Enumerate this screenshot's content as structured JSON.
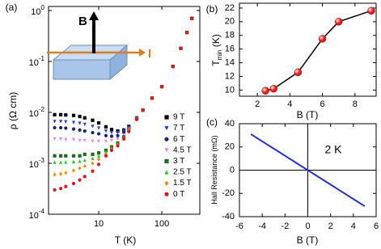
{
  "chart_data": [
    {
      "type": "scatter",
      "panel_label": "(a)",
      "xlabel": "T (K)",
      "ylabel": "ρ (Ω cm)",
      "xscale": "log",
      "yscale": "log",
      "xlim": [
        1.6,
        400
      ],
      "ylim": [
        0.0001,
        1.2
      ],
      "xticks": [
        10,
        100
      ],
      "yticks": [
        {
          "value": 0.0001,
          "label": "10",
          "exponent": "-4"
        },
        {
          "value": 0.001,
          "label": "10",
          "exponent": "-3"
        },
        {
          "value": 0.01,
          "label": "10",
          "exponent": "-2"
        },
        {
          "value": 0.1,
          "label": "10",
          "exponent": "-1"
        },
        {
          "value": 1,
          "label": "10",
          "exponent": "0"
        }
      ],
      "legend": "right",
      "inset": {
        "field_label": "B",
        "current_label": "I"
      },
      "x": [
        2,
        2.5,
        3,
        4,
        5,
        6,
        8,
        10,
        13,
        16,
        20,
        25,
        30,
        40,
        50,
        70,
        100,
        150,
        200,
        250,
        300
      ],
      "series": [
        {
          "name": "9 T",
          "color": "#000000",
          "marker": "square",
          "values": [
            0.009,
            0.009,
            0.0089,
            0.0087,
            0.0083,
            0.0078,
            0.007,
            0.0062,
            0.0052,
            0.0046,
            0.0043,
            0.0045,
            0.0053,
            0.0078,
            0.011,
            0.019,
            0.032,
            0.08,
            0.18,
            0.37,
            0.7
          ]
        },
        {
          "name": "7 T",
          "color": "#2040e0",
          "marker": "triangle-down",
          "values": [
            0.0066,
            0.0066,
            0.0065,
            0.0063,
            0.0061,
            0.0058,
            0.0053,
            0.0049,
            0.0043,
            0.004,
            0.004,
            0.0043,
            0.0051,
            0.0077,
            0.011,
            0.019,
            0.032,
            0.08,
            0.18,
            0.37,
            0.7
          ]
        },
        {
          "name": "6 T",
          "color": "#1a237e",
          "marker": "circle",
          "values": [
            0.005,
            0.005,
            0.0049,
            0.0047,
            0.0045,
            0.0043,
            0.004,
            0.0038,
            0.0035,
            0.0034,
            0.0035,
            0.004,
            0.0049,
            0.0076,
            0.011,
            0.019,
            0.032,
            0.08,
            0.18,
            0.37,
            0.7
          ]
        },
        {
          "name": "4.5 T",
          "color": "#ee82ee",
          "marker": "triangle-down",
          "values": [
            0.003,
            0.003,
            0.0029,
            0.0029,
            0.0028,
            0.0028,
            0.0027,
            0.0027,
            0.0027,
            0.0028,
            0.003,
            0.0036,
            0.0047,
            0.0075,
            0.011,
            0.019,
            0.032,
            0.08,
            0.18,
            0.37,
            0.7
          ]
        },
        {
          "name": "3 T",
          "color": "#1b6e1b",
          "marker": "square",
          "values": [
            0.0014,
            0.0014,
            0.0014,
            0.0014,
            0.0014,
            0.0015,
            0.0015,
            0.0016,
            0.0018,
            0.0021,
            0.0025,
            0.0033,
            0.0045,
            0.0074,
            0.011,
            0.019,
            0.032,
            0.08,
            0.18,
            0.37,
            0.7
          ]
        },
        {
          "name": "2.5 T",
          "color": "#22cc22",
          "marker": "triangle-up",
          "values": [
            0.00105,
            0.00105,
            0.00106,
            0.00108,
            0.0011,
            0.00115,
            0.00125,
            0.0014,
            0.0017,
            0.002,
            0.0024,
            0.0032,
            0.0044,
            0.0074,
            0.011,
            0.019,
            0.032,
            0.08,
            0.18,
            0.37,
            0.7
          ]
        },
        {
          "name": "1.5 T",
          "color": "#ff8c00",
          "marker": "diamond",
          "values": [
            0.0006,
            0.00062,
            0.00065,
            0.00072,
            0.0008,
            0.00088,
            0.001,
            0.0012,
            0.0015,
            0.0019,
            0.0023,
            0.0031,
            0.0044,
            0.0073,
            0.011,
            0.019,
            0.032,
            0.08,
            0.18,
            0.37,
            0.7
          ]
        },
        {
          "name": "0 T",
          "color": "#e8101c",
          "marker": "circle",
          "values": [
            0.0003,
            0.00032,
            0.00035,
            0.0004,
            0.00047,
            0.00055,
            0.0007,
            0.00095,
            0.0014,
            0.0018,
            0.0022,
            0.003,
            0.0042,
            0.0073,
            0.011,
            0.019,
            0.032,
            0.08,
            0.18,
            0.37,
            0.7
          ]
        }
      ]
    },
    {
      "type": "line",
      "panel_label": "(b)",
      "xlabel": "B (T)",
      "ylabel": "T",
      "ylabel_subscript": "min",
      "ylabel_unit": " (K)",
      "xlim": [
        0.9,
        9.3
      ],
      "ylim": [
        9.1,
        22.7
      ],
      "xticks": [
        2,
        4,
        6,
        8
      ],
      "yticks": [
        10,
        12,
        14,
        16,
        18,
        20,
        22
      ],
      "color": "#000000",
      "marker_color": "#e81818",
      "x": [
        2.5,
        3,
        4.5,
        6,
        7,
        9
      ],
      "values": [
        9.9,
        10.2,
        12.6,
        17.5,
        20,
        21.6
      ]
    },
    {
      "type": "line",
      "panel_label": "(c)",
      "xlabel": "B (T)",
      "ylabel": "Hall Resistance (mΩ)",
      "annotation": "2 K",
      "xlim": [
        -6,
        6
      ],
      "ylim": [
        -40,
        40
      ],
      "xticks": [
        -6,
        -4,
        -2,
        0,
        2,
        4,
        6
      ],
      "yticks": [
        -40,
        -20,
        0,
        20,
        40
      ],
      "color": "#1f2fe0",
      "zero_lines": true,
      "x": [
        -5,
        5
      ],
      "values": [
        31,
        -31
      ]
    }
  ]
}
